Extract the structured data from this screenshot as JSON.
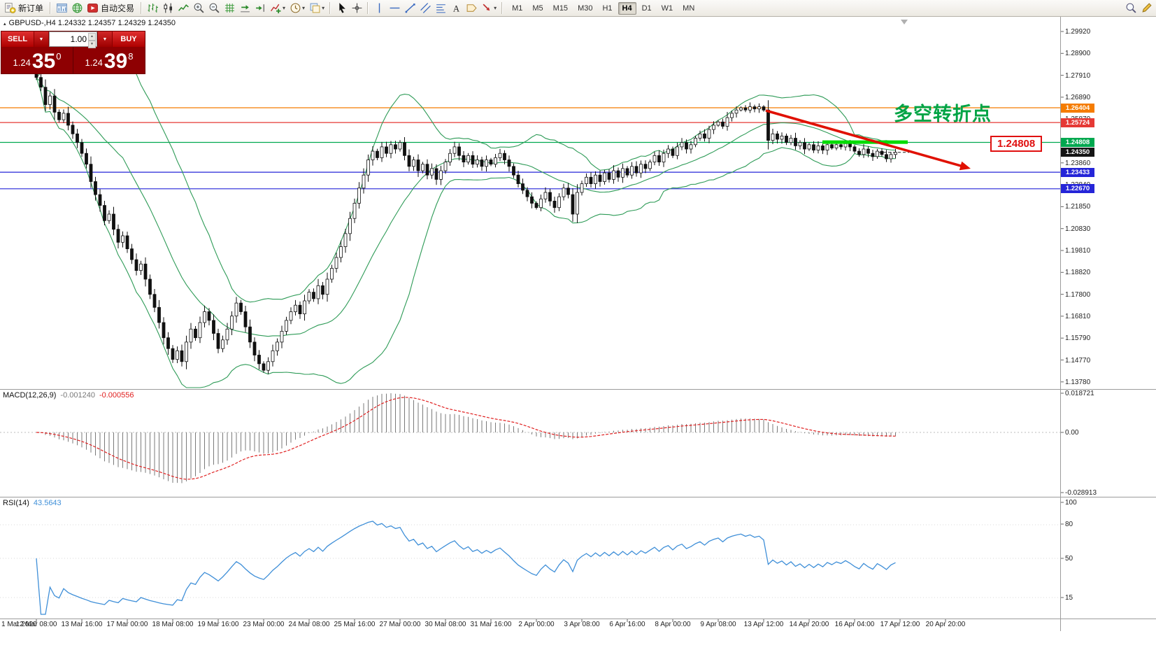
{
  "toolbar": {
    "new_order": "新订单",
    "autotrading": "自动交易",
    "timeframes": [
      "M1",
      "M5",
      "M15",
      "M30",
      "H1",
      "H4",
      "D1",
      "W1",
      "MN"
    ],
    "active_timeframe": "H4",
    "icons": [
      "new-order-icon",
      "chart-window-icon",
      "globe-icon",
      "autotrading-icon",
      "bar-chart-icon",
      "candlestick-icon",
      "line-chart-icon",
      "zoom-in-icon",
      "zoom-out-icon",
      "grid-icon",
      "auto-scroll-icon",
      "chart-shift-icon",
      "indicators-icon",
      "period-icon",
      "templates-icon",
      "cursor-icon",
      "crosshair-icon",
      "vertical-line-icon",
      "horizontal-line-icon",
      "trendline-icon",
      "channel-icon",
      "fibonacci-icon",
      "text-icon",
      "label-icon",
      "arrows-icon",
      "search-icon",
      "edit-icon"
    ]
  },
  "trade_panel": {
    "sell": "SELL",
    "buy": "BUY",
    "volume": "1.00",
    "sell_price": {
      "base": "1.24",
      "big": "35",
      "sup": "0"
    },
    "buy_price": {
      "base": "1.24",
      "big": "39",
      "sup": "8"
    }
  },
  "chart": {
    "info": "GBPUSD-,H4  1.24332 1.24357 1.24329 1.24350"
  },
  "macd": {
    "name": "MACD(12,26,9)",
    "main": "-0.001240",
    "signal": "-0.000556",
    "scale": [
      "0.018721",
      "0.00",
      "-0.028913"
    ]
  },
  "rsi": {
    "name": "RSI(14)",
    "value": "43.5643",
    "scale": [
      "100",
      "80",
      "50",
      "15"
    ]
  },
  "chart_data": {
    "type": "candlestick",
    "symbol": "GBPUSD-",
    "timeframe": "H4",
    "ylim": [
      1.1378,
      1.2992
    ],
    "open_first": 1.281,
    "closes": [
      1.278,
      1.2735,
      1.2655,
      1.2695,
      1.262,
      1.2585,
      1.2615,
      1.256,
      1.252,
      1.248,
      1.243,
      1.238,
      1.23,
      1.224,
      1.219,
      1.212,
      1.215,
      1.208,
      1.202,
      1.205,
      1.199,
      1.194,
      1.189,
      1.192,
      1.185,
      1.178,
      1.172,
      1.165,
      1.158,
      1.153,
      1.148,
      1.152,
      1.147,
      1.156,
      1.162,
      1.158,
      1.165,
      1.17,
      1.166,
      1.16,
      1.153,
      1.157,
      1.162,
      1.168,
      1.174,
      1.17,
      1.163,
      1.156,
      1.15,
      1.146,
      1.143,
      1.147,
      1.152,
      1.156,
      1.161,
      1.166,
      1.17,
      1.173,
      1.169,
      1.175,
      1.179,
      1.176,
      1.182,
      1.178,
      1.185,
      1.19,
      1.195,
      1.2,
      1.206,
      1.213,
      1.22,
      1.227,
      1.233,
      1.24,
      1.244,
      1.241,
      1.246,
      1.243,
      1.247,
      1.245,
      1.248,
      1.242,
      1.237,
      1.24,
      1.235,
      1.238,
      1.233,
      1.236,
      1.231,
      1.235,
      1.239,
      1.243,
      1.246,
      1.242,
      1.239,
      1.242,
      1.238,
      1.24,
      1.237,
      1.24,
      1.238,
      1.241,
      1.243,
      1.24,
      1.237,
      1.233,
      1.229,
      1.226,
      1.223,
      1.22,
      1.218,
      1.222,
      1.225,
      1.221,
      1.218,
      1.223,
      1.227,
      1.224,
      1.215,
      1.225,
      1.229,
      1.232,
      1.229,
      1.233,
      1.23,
      1.234,
      1.231,
      1.235,
      1.232,
      1.236,
      1.233,
      1.237,
      1.234,
      1.238,
      1.236,
      1.239,
      1.242,
      1.239,
      1.243,
      1.245,
      1.242,
      1.246,
      1.248,
      1.245,
      1.247,
      1.25,
      1.252,
      1.25,
      1.254,
      1.256,
      1.2575,
      1.2555,
      1.2595,
      1.2615,
      1.263,
      1.264,
      1.263,
      1.2645,
      1.2635,
      1.2645,
      1.263,
      1.249,
      1.252,
      1.2495,
      1.251,
      1.248,
      1.25,
      1.2465,
      1.248,
      1.245,
      1.247,
      1.2445,
      1.2465,
      1.2445,
      1.247,
      1.2455,
      1.247,
      1.246,
      1.2475,
      1.246,
      1.244,
      1.2425,
      1.245,
      1.243,
      1.2415,
      1.244,
      1.2425,
      1.2405,
      1.2425,
      1.2435
    ],
    "overlays": [
      {
        "name": "Bollinger Bands (20,2)",
        "color": "#2E9B57"
      }
    ],
    "hlines": [
      {
        "price": 1.26404,
        "label": "1.26404",
        "color": "#F57C00"
      },
      {
        "price": 1.25724,
        "label": "1.25724",
        "color": "#E53935"
      },
      {
        "price": 1.24808,
        "label": "1.24808",
        "color": "#00A84F"
      },
      {
        "price": 1.23433,
        "label": "1.23433",
        "color": "#2525D8"
      },
      {
        "price": 1.2267,
        "label": "1.22670",
        "color": "#2525D8"
      }
    ],
    "current_price": {
      "value": 1.2435,
      "label": "1.24350",
      "color": "#151515"
    },
    "price_axis": [
      "1.29920",
      "1.28900",
      "1.27910",
      "1.26890",
      "1.25870",
      "1.24860",
      "1.23860",
      "1.22840",
      "1.21850",
      "1.20830",
      "1.19810",
      "1.18820",
      "1.17800",
      "1.16810",
      "1.15790",
      "1.14770",
      "1.13780"
    ],
    "time_axis": [
      "1 Mar 2020",
      "12 Mar 08:00",
      "13 Mar 16:00",
      "17 Mar 00:00",
      "18 Mar 08:00",
      "19 Mar 16:00",
      "23 Mar 00:00",
      "24 Mar 08:00",
      "25 Mar 16:00",
      "27 Mar 00:00",
      "30 Mar 08:00",
      "31 Mar 16:00",
      "2 Apr 00:00",
      "3 Apr 08:00",
      "6 Apr 16:00",
      "8 Apr 00:00",
      "9 Apr 08:00",
      "13 Apr 12:00",
      "14 Apr 20:00",
      "16 Apr 04:00",
      "17 Apr 12:00",
      "20 Apr 20:00"
    ],
    "indicators": [
      {
        "name": "MACD",
        "params": "12,26,9",
        "values": [
          -0.00124,
          -0.000556
        ]
      },
      {
        "name": "RSI",
        "params": "14",
        "value": 43.5643
      }
    ],
    "annotations": [
      {
        "type": "text",
        "text": "多空转折点",
        "color": "#00A445"
      },
      {
        "type": "trend-arrow",
        "from_price": 1.263,
        "to_price": 1.236,
        "color": "#E01000"
      },
      {
        "type": "highlight-segment",
        "price": 1.2482,
        "color": "#00DC00"
      },
      {
        "type": "callout",
        "text": "1.24808",
        "color": "#E01010"
      }
    ]
  }
}
